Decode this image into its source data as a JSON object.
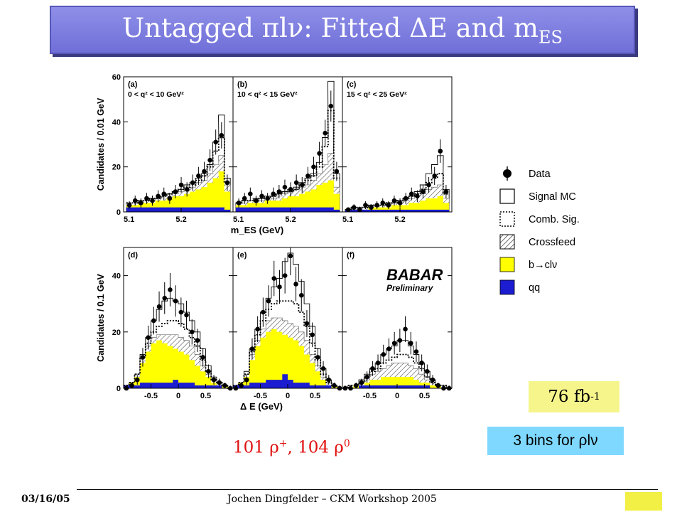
{
  "slide": {
    "title_main": "Untagged πlν: Fitted ΔE and m",
    "title_sub": "ES",
    "lumi_main": "76 fb",
    "lumi_sup": "-1",
    "bins_label": "3 bins for ρlν",
    "yield_a": "101 ρ",
    "yield_a_sup": "+",
    "yield_b": ", 104 ρ",
    "yield_b_sup": "0",
    "footer_date": "03/16/05",
    "footer_author": "Jochen Dingfelder – CKM Workshop 2005",
    "babar_logo": "BABAR",
    "babar_sub": "Preliminary"
  },
  "colors": {
    "title_bg": "#7b7bde",
    "bcl": "#ffff00",
    "qq": "#1c1cd0",
    "lumi_bg": "#f5f58c",
    "bins_bg": "#7fd8ff",
    "yield_text": "#e01010"
  },
  "legend": [
    {
      "key": "data",
      "label": "Data",
      "icon": "data-point-icon"
    },
    {
      "key": "signal",
      "label": "Signal MC",
      "icon": "open-box-icon"
    },
    {
      "key": "comb",
      "label": "Comb. Sig.",
      "icon": "dotted-box-icon"
    },
    {
      "key": "cross",
      "label": "Crossfeed",
      "icon": "hatched-box-icon"
    },
    {
      "key": "bcl",
      "label": "b→clν",
      "icon": "yellow-box-icon"
    },
    {
      "key": "qq",
      "label": "qq",
      "icon": "blue-box-icon"
    }
  ],
  "chart_data": [
    {
      "type": "area",
      "row": "mES",
      "ylabel": "Candidates / 0.01 GeV",
      "xlabel": "m_ES (GeV)",
      "ylim": [
        0,
        60
      ],
      "yticks": [
        0,
        20,
        40,
        60
      ],
      "xlim": [
        5.1,
        5.29
      ],
      "xticks": [
        5.1,
        5.2
      ],
      "panels": [
        {
          "label": "(a)",
          "cut": "0 < q² < 10 GeV²",
          "x": [
            5.11,
            5.12,
            5.13,
            5.14,
            5.15,
            5.16,
            5.17,
            5.18,
            5.19,
            5.2,
            5.21,
            5.22,
            5.23,
            5.24,
            5.25,
            5.26,
            5.27,
            5.28
          ],
          "data": [
            3,
            5,
            4,
            6,
            5,
            7,
            8,
            6,
            9,
            12,
            10,
            13,
            16,
            18,
            23,
            31,
            34,
            13
          ],
          "signal": [
            4,
            4,
            5,
            5,
            6,
            6,
            7,
            8,
            9,
            10,
            12,
            13,
            15,
            17,
            21,
            31,
            43,
            15
          ],
          "comb": [
            4,
            4,
            5,
            5,
            6,
            6,
            7,
            8,
            9,
            10,
            11,
            12,
            14,
            16,
            20,
            27,
            33,
            13
          ],
          "crossfeed": [
            4,
            4,
            4,
            5,
            5,
            6,
            7,
            7,
            8,
            9,
            10,
            11,
            13,
            14,
            17,
            21,
            25,
            12
          ],
          "bcl": [
            3,
            3,
            4,
            4,
            4,
            5,
            5,
            6,
            7,
            7,
            8,
            9,
            10,
            11,
            13,
            15,
            18,
            9
          ],
          "qq": [
            2,
            2,
            2,
            2,
            2,
            2,
            2,
            2,
            2,
            2,
            2,
            2,
            2,
            2,
            2,
            2,
            2,
            1
          ]
        },
        {
          "label": "(b)",
          "cut": "10 < q² < 15 GeV²",
          "x": [
            5.11,
            5.12,
            5.13,
            5.14,
            5.15,
            5.16,
            5.17,
            5.18,
            5.19,
            5.2,
            5.21,
            5.22,
            5.23,
            5.24,
            5.25,
            5.26,
            5.27,
            5.28
          ],
          "data": [
            4,
            6,
            8,
            5,
            7,
            6,
            8,
            9,
            11,
            10,
            13,
            12,
            16,
            20,
            26,
            35,
            47,
            18
          ],
          "signal": [
            4,
            5,
            5,
            6,
            6,
            7,
            7,
            8,
            9,
            10,
            11,
            13,
            15,
            17,
            22,
            33,
            58,
            17
          ],
          "comb": [
            4,
            5,
            5,
            5,
            6,
            6,
            7,
            8,
            9,
            9,
            10,
            12,
            14,
            16,
            20,
            29,
            45,
            15
          ],
          "crossfeed": [
            4,
            4,
            5,
            5,
            5,
            6,
            6,
            7,
            8,
            9,
            10,
            11,
            12,
            14,
            17,
            21,
            26,
            11
          ],
          "bcl": [
            3,
            3,
            4,
            4,
            4,
            5,
            5,
            5,
            6,
            7,
            7,
            8,
            9,
            10,
            12,
            13,
            14,
            8
          ],
          "qq": [
            2,
            2,
            2,
            2,
            2,
            2,
            2,
            2,
            2,
            2,
            2,
            2,
            2,
            2,
            2,
            2,
            2,
            1
          ]
        },
        {
          "label": "(c)",
          "cut": "15 < q² < 25 GeV²",
          "x": [
            5.11,
            5.12,
            5.13,
            5.14,
            5.15,
            5.16,
            5.17,
            5.18,
            5.19,
            5.2,
            5.21,
            5.22,
            5.23,
            5.24,
            5.25,
            5.26,
            5.27,
            5.28
          ],
          "data": [
            1,
            2,
            1,
            3,
            2,
            3,
            4,
            3,
            5,
            4,
            6,
            8,
            7,
            9,
            12,
            16,
            27,
            9
          ],
          "signal": [
            1,
            2,
            2,
            2,
            3,
            3,
            3,
            4,
            4,
            5,
            6,
            7,
            9,
            12,
            17,
            21,
            25,
            10
          ],
          "comb": [
            1,
            2,
            2,
            2,
            3,
            3,
            3,
            4,
            4,
            5,
            6,
            7,
            8,
            10,
            13,
            15,
            17,
            8
          ],
          "crossfeed": [
            1,
            1,
            2,
            2,
            2,
            3,
            3,
            3,
            4,
            4,
            5,
            6,
            7,
            8,
            10,
            11,
            12,
            6
          ],
          "bcl": [
            1,
            1,
            1,
            1,
            2,
            2,
            2,
            2,
            3,
            3,
            3,
            4,
            4,
            5,
            6,
            6,
            7,
            4
          ],
          "qq": [
            1,
            1,
            1,
            1,
            1,
            1,
            1,
            1,
            1,
            1,
            1,
            1,
            1,
            1,
            1,
            1,
            1,
            1
          ]
        }
      ]
    },
    {
      "type": "area",
      "row": "dE",
      "ylabel": "Candidates / 0.1 GeV",
      "xlabel": "Δ E (GeV)",
      "ylim": [
        0,
        50
      ],
      "yticks": [
        0,
        20,
        40
      ],
      "xlim": [
        -1.0,
        1.0
      ],
      "xticks": [
        -0.5,
        0,
        0.5
      ],
      "panels": [
        {
          "label": "(d)",
          "cut": "",
          "x": [
            -0.95,
            -0.85,
            -0.75,
            -0.65,
            -0.55,
            -0.45,
            -0.35,
            -0.25,
            -0.15,
            -0.05,
            0.05,
            0.15,
            0.25,
            0.35,
            0.45,
            0.55,
            0.65,
            0.75,
            0.85,
            0.95
          ],
          "data": [
            0,
            1,
            3,
            11,
            18,
            24,
            29,
            32,
            35,
            31,
            27,
            26,
            20,
            17,
            11,
            6,
            3,
            2,
            1,
            0
          ],
          "signal": [
            1,
            2,
            5,
            12,
            18,
            24,
            28,
            31,
            32,
            31,
            30,
            27,
            24,
            20,
            14,
            8,
            4,
            2,
            1,
            0
          ],
          "comb": [
            1,
            2,
            5,
            11,
            16,
            20,
            22,
            23,
            24,
            24,
            23,
            21,
            18,
            15,
            10,
            6,
            3,
            2,
            1,
            0
          ],
          "crossfeed": [
            1,
            2,
            5,
            11,
            15,
            18,
            19,
            19,
            19,
            19,
            18,
            17,
            15,
            12,
            8,
            5,
            3,
            2,
            1,
            0
          ],
          "bcl": [
            1,
            2,
            4,
            9,
            13,
            16,
            17,
            16,
            15,
            14,
            13,
            12,
            10,
            8,
            6,
            4,
            2,
            1,
            1,
            0
          ],
          "qq": [
            1,
            1,
            1,
            2,
            2,
            2,
            2,
            2,
            2,
            3,
            2,
            2,
            2,
            1,
            1,
            1,
            1,
            1,
            0,
            0
          ]
        },
        {
          "label": "(e)",
          "cut": "",
          "x": [
            -0.95,
            -0.85,
            -0.75,
            -0.65,
            -0.55,
            -0.45,
            -0.35,
            -0.25,
            -0.15,
            -0.05,
            0.05,
            0.15,
            0.25,
            0.35,
            0.45,
            0.55,
            0.65,
            0.75,
            0.85,
            0.95
          ],
          "data": [
            0,
            1,
            3,
            14,
            21,
            27,
            31,
            39,
            36,
            40,
            47,
            37,
            33,
            23,
            19,
            11,
            7,
            3,
            1,
            0
          ],
          "signal": [
            1,
            2,
            6,
            14,
            21,
            27,
            32,
            36,
            39,
            45,
            48,
            44,
            38,
            30,
            22,
            14,
            7,
            3,
            1,
            0
          ],
          "comb": [
            1,
            2,
            5,
            13,
            19,
            24,
            28,
            30,
            31,
            31,
            31,
            30,
            27,
            22,
            16,
            10,
            5,
            2,
            1,
            0
          ],
          "crossfeed": [
            1,
            2,
            5,
            12,
            17,
            21,
            24,
            25,
            25,
            24,
            23,
            22,
            20,
            17,
            12,
            8,
            4,
            2,
            1,
            0
          ],
          "bcl": [
            1,
            2,
            4,
            10,
            15,
            18,
            20,
            21,
            20,
            19,
            18,
            17,
            15,
            12,
            9,
            6,
            3,
            1,
            1,
            0
          ],
          "qq": [
            1,
            1,
            1,
            2,
            2,
            2,
            3,
            3,
            3,
            5,
            3,
            2,
            2,
            2,
            1,
            1,
            1,
            1,
            0,
            0
          ]
        },
        {
          "label": "(f)",
          "cut": "",
          "x": [
            -0.95,
            -0.85,
            -0.75,
            -0.65,
            -0.55,
            -0.45,
            -0.35,
            -0.25,
            -0.15,
            -0.05,
            0.05,
            0.15,
            0.25,
            0.35,
            0.45,
            0.55,
            0.65,
            0.75,
            0.85,
            0.95
          ],
          "data": [
            0,
            0,
            1,
            2,
            4,
            7,
            9,
            12,
            14,
            16,
            17,
            21,
            16,
            13,
            9,
            6,
            3,
            1,
            0,
            0
          ],
          "signal": [
            0,
            1,
            1,
            3,
            5,
            7,
            9,
            12,
            14,
            15,
            17,
            17,
            15,
            12,
            9,
            6,
            3,
            1,
            1,
            0
          ],
          "comb": [
            0,
            1,
            1,
            2,
            4,
            6,
            7,
            9,
            10,
            11,
            12,
            12,
            11,
            9,
            7,
            4,
            2,
            1,
            1,
            0
          ],
          "crossfeed": [
            0,
            1,
            1,
            2,
            3,
            5,
            6,
            7,
            8,
            9,
            9,
            9,
            8,
            7,
            5,
            3,
            2,
            1,
            0,
            0
          ],
          "bcl": [
            0,
            0,
            1,
            1,
            2,
            3,
            3,
            4,
            4,
            4,
            4,
            4,
            4,
            3,
            2,
            2,
            1,
            1,
            0,
            0
          ],
          "qq": [
            0,
            0,
            0,
            1,
            1,
            1,
            1,
            1,
            1,
            1,
            1,
            1,
            1,
            1,
            1,
            1,
            0,
            0,
            0,
            0
          ]
        }
      ]
    }
  ]
}
